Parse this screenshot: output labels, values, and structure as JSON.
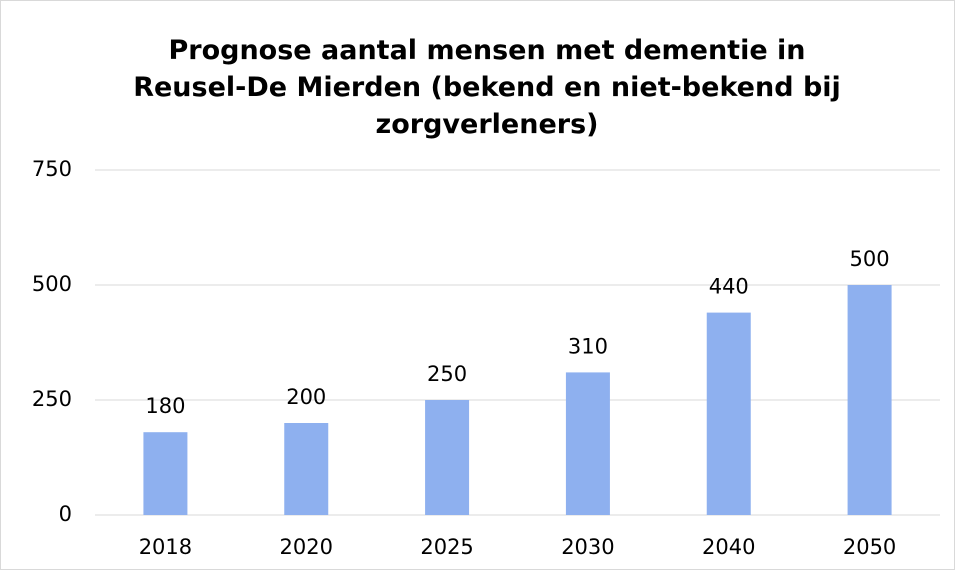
{
  "chart_data": {
    "type": "bar",
    "title": "Prognose aantal mensen met dementie in Reusel-De Mierden (bekend en niet-bekend bij zorgverleners)",
    "categories": [
      "2018",
      "2020",
      "2025",
      "2030",
      "2040",
      "2050"
    ],
    "values": [
      180,
      200,
      250,
      310,
      440,
      500
    ],
    "color": "#8eb0ef",
    "ylim": [
      0,
      750
    ],
    "yticks": [
      0,
      250,
      500,
      750
    ],
    "grid": true
  }
}
